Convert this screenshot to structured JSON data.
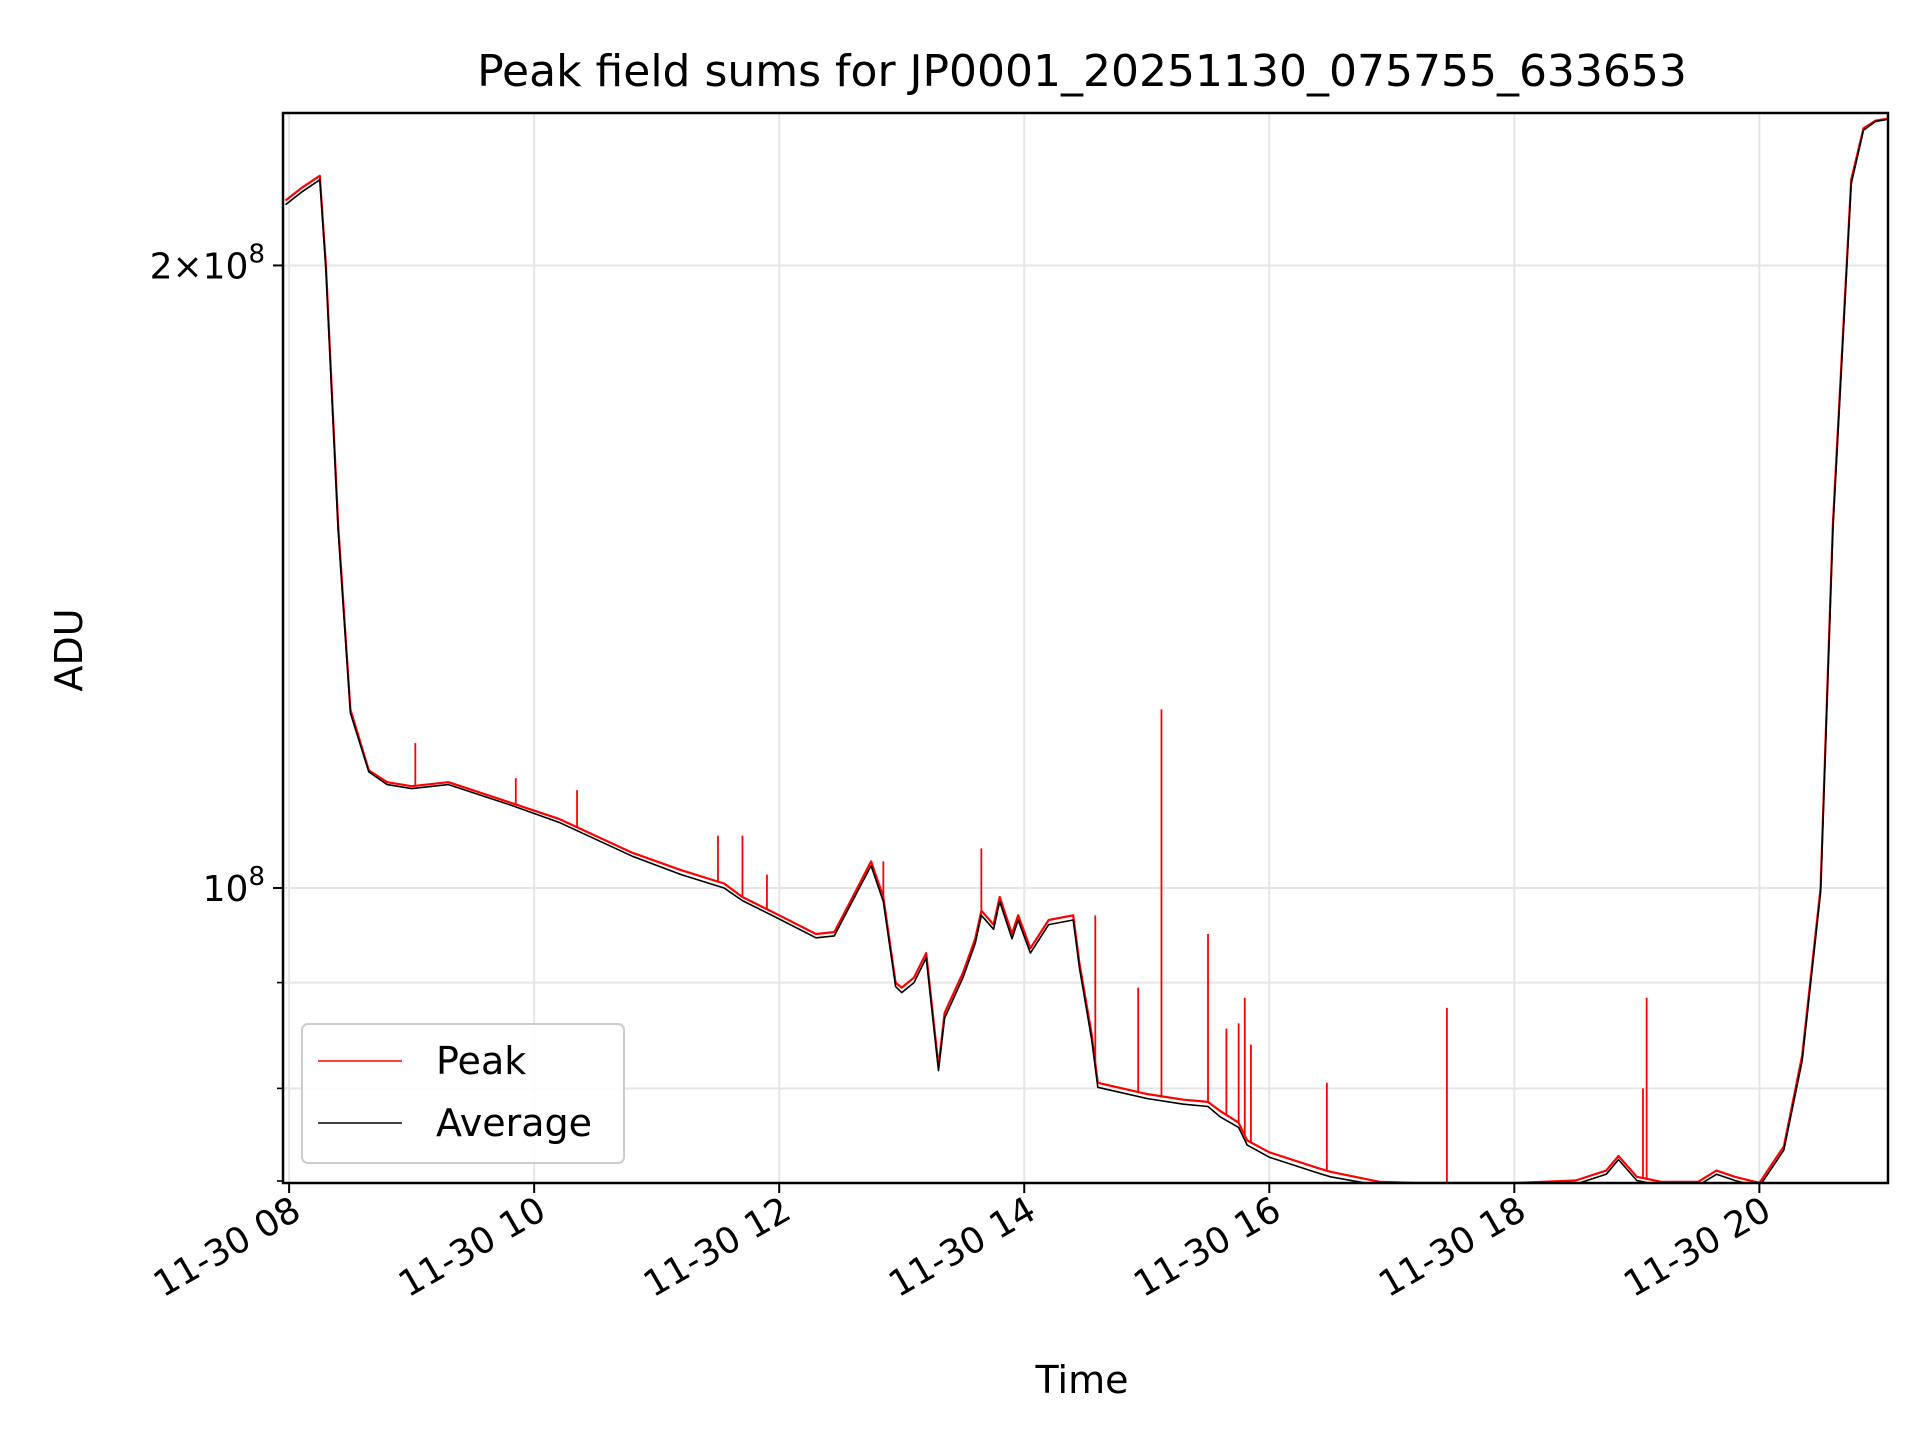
{
  "chart_data": {
    "type": "line",
    "title": "Peak field sums for JP0001_20251130_075755_633653",
    "xlabel": "Time",
    "ylabel": "ADU",
    "y_scale": "log",
    "xlim_hours": [
      7.95,
      21.05
    ],
    "ylim": [
      72000000,
      237000000
    ],
    "x_ticks": [
      {
        "value": 8,
        "label": "11-30 08"
      },
      {
        "value": 10,
        "label": "11-30 10"
      },
      {
        "value": 12,
        "label": "11-30 12"
      },
      {
        "value": 14,
        "label": "11-30 14"
      },
      {
        "value": 16,
        "label": "11-30 16"
      },
      {
        "value": 18,
        "label": "11-30 18"
      },
      {
        "value": 20,
        "label": "11-30 20"
      }
    ],
    "y_major_ticks": [
      {
        "value": 100000000,
        "base": "10",
        "exp": "8",
        "label": "10^8"
      },
      {
        "value": 200000000,
        "mantissa": "2×",
        "base": "10",
        "exp": "8",
        "label": "2×10^8"
      }
    ],
    "y_minor_ticks": [
      80000000,
      90000000
    ],
    "grid": true,
    "legend": {
      "position": "lower-left",
      "entries": [
        "Peak",
        "Average"
      ]
    },
    "series": [
      {
        "name": "Peak",
        "color": "#ff0000",
        "x": [
          7.97,
          8.1,
          8.25,
          8.3,
          8.4,
          8.5,
          8.65,
          8.8,
          9.0,
          9.3,
          9.4,
          9.8,
          10.2,
          10.8,
          11.2,
          11.55,
          11.7,
          12.0,
          12.3,
          12.45,
          12.6,
          12.75,
          12.85,
          12.95,
          13.0,
          13.1,
          13.2,
          13.3,
          13.35,
          13.5,
          13.6,
          13.65,
          13.75,
          13.8,
          13.9,
          13.95,
          14.05,
          14.2,
          14.4,
          14.45,
          14.55,
          14.6,
          15.0,
          15.3,
          15.5,
          15.6,
          15.75,
          15.82,
          16.0,
          16.4,
          16.5,
          16.9,
          17.2,
          17.6,
          18.0,
          18.5,
          18.75,
          18.85,
          19.0,
          19.2,
          19.5,
          19.65,
          19.8,
          20.0,
          20.2,
          20.35,
          20.5,
          20.6,
          20.75,
          20.85,
          20.95,
          21.04
        ],
        "y": [
          215000000,
          218000000,
          221000000,
          200000000,
          150000000,
          122000000,
          114000000,
          112500000,
          112000000,
          112500000,
          112000000,
          110000000,
          108000000,
          104000000,
          102000000,
          100500000,
          99000000,
          97000000,
          95000000,
          95200000,
          99000000,
          103000000,
          99000000,
          90000000,
          89500000,
          90500000,
          93000000,
          82000000,
          87000000,
          91000000,
          94500000,
          97500000,
          96000000,
          99000000,
          95000000,
          97000000,
          93500000,
          96500000,
          97000000,
          92000000,
          85000000,
          80500000,
          79500000,
          79000000,
          78800000,
          78000000,
          77000000,
          75500000,
          74500000,
          73200000,
          72900000,
          72100000,
          72000000,
          72000000,
          72000000,
          72200000,
          73000000,
          74200000,
          72500000,
          72100000,
          72100000,
          73000000,
          72500000,
          72000000,
          75000000,
          83000000,
          100000000,
          150000000,
          220000000,
          233000000,
          235000000,
          235500000
        ]
      },
      {
        "name": "Average",
        "color": "#000000",
        "x": [
          7.97,
          8.1,
          8.25,
          8.3,
          8.4,
          8.5,
          8.65,
          8.8,
          9.0,
          9.3,
          9.4,
          9.8,
          10.2,
          10.8,
          11.2,
          11.55,
          11.7,
          12.0,
          12.3,
          12.45,
          12.6,
          12.75,
          12.85,
          12.95,
          13.0,
          13.1,
          13.2,
          13.3,
          13.35,
          13.5,
          13.6,
          13.65,
          13.75,
          13.8,
          13.9,
          13.95,
          14.05,
          14.2,
          14.4,
          14.45,
          14.55,
          14.6,
          15.0,
          15.3,
          15.5,
          15.6,
          15.75,
          15.82,
          16.0,
          16.4,
          16.5,
          16.9,
          17.2,
          17.6,
          18.0,
          18.5,
          18.75,
          18.85,
          19.0,
          19.2,
          19.5,
          19.65,
          19.8,
          20.0,
          20.2,
          20.35,
          20.5,
          20.6,
          20.75,
          20.85,
          20.95,
          21.04
        ],
        "y": [
          214000000,
          217000000,
          220000000,
          199000000,
          149000000,
          121500000,
          113800000,
          112200000,
          111700000,
          112200000,
          111700000,
          109700000,
          107600000,
          103600000,
          101500000,
          100000000,
          98600000,
          96600000,
          94600000,
          94800000,
          98600000,
          102500000,
          98500000,
          89600000,
          89000000,
          90000000,
          92500000,
          81600000,
          86500000,
          90500000,
          94000000,
          97000000,
          95500000,
          98500000,
          94500000,
          96500000,
          93000000,
          96000000,
          96500000,
          91500000,
          84500000,
          80100000,
          79100000,
          78600000,
          78400000,
          77500000,
          76600000,
          75100000,
          74100000,
          72800000,
          72500000,
          71800000,
          71700000,
          71700000,
          71700000,
          71900000,
          72700000,
          73900000,
          72200000,
          71800000,
          71800000,
          72700000,
          72200000,
          71700000,
          74700000,
          82500000,
          99500000,
          149000000,
          219000000,
          232500000,
          234800000,
          235300000
        ]
      }
    ],
    "spikes": [
      {
        "x": 9.03,
        "y": 117500000
      },
      {
        "x": 9.85,
        "y": 113000000
      },
      {
        "x": 10.35,
        "y": 111500000
      },
      {
        "x": 11.5,
        "y": 106000000
      },
      {
        "x": 11.7,
        "y": 106000000
      },
      {
        "x": 11.9,
        "y": 101500000
      },
      {
        "x": 12.85,
        "y": 103000000
      },
      {
        "x": 13.65,
        "y": 104500000
      },
      {
        "x": 14.58,
        "y": 97000000
      },
      {
        "x": 14.93,
        "y": 89500000
      },
      {
        "x": 15.12,
        "y": 122000000
      },
      {
        "x": 15.5,
        "y": 95000000
      },
      {
        "x": 15.65,
        "y": 85500000
      },
      {
        "x": 15.75,
        "y": 86000000
      },
      {
        "x": 15.8,
        "y": 88500000
      },
      {
        "x": 15.85,
        "y": 84000000
      },
      {
        "x": 16.47,
        "y": 80500000
      },
      {
        "x": 17.45,
        "y": 87500000
      },
      {
        "x": 19.05,
        "y": 80000000
      },
      {
        "x": 19.08,
        "y": 88500000
      }
    ]
  }
}
